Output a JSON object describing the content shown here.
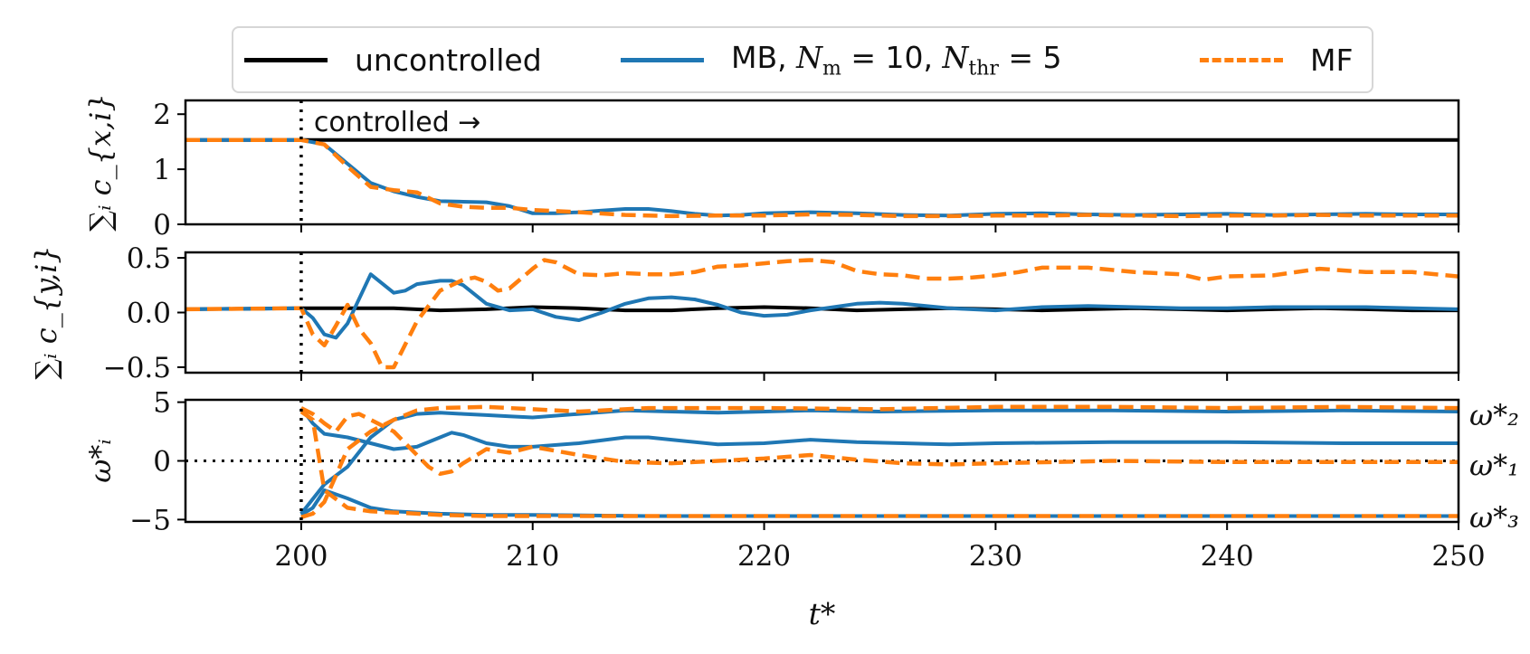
{
  "chart_data": [
    {
      "type": "line",
      "panel": "top",
      "ylabel": "∑ᵢ c_{x,i}",
      "ylim": [
        0,
        2.25
      ],
      "yticks": [
        0,
        1,
        2
      ],
      "xlim": [
        195,
        250
      ],
      "annotation": "controlled →",
      "series": [
        {
          "name": "uncontrolled",
          "color": "#000000",
          "dash": "solid",
          "x": [
            195,
            200,
            210,
            220,
            230,
            240,
            250
          ],
          "y": [
            1.53,
            1.53,
            1.53,
            1.53,
            1.53,
            1.53,
            1.53
          ]
        },
        {
          "name": "MB",
          "color": "#1f77b4",
          "dash": "solid",
          "x": [
            195,
            200,
            201,
            202,
            203,
            204,
            205,
            206,
            207,
            208,
            209,
            210,
            211,
            212,
            213,
            214,
            215,
            216,
            217,
            218,
            219,
            220,
            222,
            224,
            226,
            228,
            230,
            232,
            234,
            236,
            238,
            240,
            242,
            244,
            246,
            248,
            250
          ],
          "y": [
            1.53,
            1.53,
            1.45,
            1.1,
            0.75,
            0.6,
            0.5,
            0.42,
            0.41,
            0.4,
            0.33,
            0.2,
            0.2,
            0.22,
            0.25,
            0.28,
            0.28,
            0.24,
            0.19,
            0.16,
            0.17,
            0.2,
            0.22,
            0.2,
            0.17,
            0.16,
            0.19,
            0.2,
            0.18,
            0.17,
            0.18,
            0.19,
            0.17,
            0.18,
            0.19,
            0.18,
            0.18
          ]
        },
        {
          "name": "MF",
          "color": "#ff7f0e",
          "dash": "dashed",
          "x": [
            195,
            200,
            201,
            202,
            203,
            204,
            205,
            206,
            207,
            208,
            209,
            210,
            212,
            214,
            216,
            218,
            220,
            222,
            224,
            226,
            228,
            230,
            232,
            234,
            236,
            238,
            240,
            242,
            244,
            246,
            248,
            250
          ],
          "y": [
            1.53,
            1.53,
            1.45,
            1.05,
            0.68,
            0.62,
            0.58,
            0.38,
            0.32,
            0.3,
            0.3,
            0.26,
            0.22,
            0.17,
            0.15,
            0.16,
            0.16,
            0.18,
            0.17,
            0.15,
            0.15,
            0.16,
            0.16,
            0.17,
            0.16,
            0.15,
            0.16,
            0.16,
            0.17,
            0.16,
            0.16,
            0.16
          ]
        }
      ]
    },
    {
      "type": "line",
      "panel": "middle",
      "ylabel": "∑ᵢ c_{y,i}",
      "ylim": [
        -0.55,
        0.55
      ],
      "yticks": [
        -0.5,
        0.0,
        0.5
      ],
      "xlim": [
        195,
        250
      ],
      "series": [
        {
          "name": "uncontrolled",
          "color": "#000000",
          "dash": "solid",
          "x": [
            195,
            200,
            202,
            204,
            206,
            208,
            210,
            212,
            214,
            216,
            218,
            220,
            222,
            224,
            226,
            228,
            230,
            232,
            234,
            236,
            238,
            240,
            242,
            244,
            246,
            248,
            250
          ],
          "y": [
            0.03,
            0.04,
            0.04,
            0.04,
            0.02,
            0.03,
            0.05,
            0.04,
            0.02,
            0.02,
            0.04,
            0.05,
            0.04,
            0.02,
            0.03,
            0.04,
            0.03,
            0.02,
            0.03,
            0.04,
            0.03,
            0.02,
            0.03,
            0.04,
            0.03,
            0.02,
            0.02
          ]
        },
        {
          "name": "MB",
          "color": "#1f77b4",
          "dash": "solid",
          "x": [
            195,
            200,
            200.5,
            201,
            201.5,
            202,
            203,
            204,
            204.5,
            205,
            206,
            206.5,
            207,
            208,
            209,
            210,
            211,
            212,
            213,
            214,
            215,
            216,
            217,
            218,
            219,
            220,
            221,
            222,
            223,
            224,
            225,
            226,
            228,
            230,
            232,
            234,
            236,
            238,
            240,
            242,
            244,
            246,
            248,
            250
          ],
          "y": [
            0.03,
            0.04,
            -0.05,
            -0.2,
            -0.23,
            -0.1,
            0.35,
            0.18,
            0.2,
            0.26,
            0.29,
            0.29,
            0.25,
            0.08,
            0.02,
            0.03,
            -0.04,
            -0.07,
            0.0,
            0.08,
            0.13,
            0.14,
            0.12,
            0.07,
            0.0,
            -0.03,
            -0.02,
            0.02,
            0.05,
            0.08,
            0.09,
            0.08,
            0.04,
            0.02,
            0.05,
            0.06,
            0.05,
            0.04,
            0.04,
            0.05,
            0.05,
            0.05,
            0.04,
            0.03
          ]
        },
        {
          "name": "MF",
          "color": "#ff7f0e",
          "dash": "dashed",
          "x": [
            195,
            200,
            200.5,
            201,
            201.5,
            202,
            202.5,
            203,
            203.5,
            204,
            205,
            206,
            207,
            207.5,
            208,
            208.5,
            209,
            210,
            210.5,
            211,
            212,
            213,
            214,
            215,
            216,
            217,
            218,
            219,
            220,
            221,
            222,
            223,
            224,
            225,
            226,
            227,
            228,
            229,
            230,
            231,
            232,
            234,
            236,
            238,
            239,
            240,
            242,
            244,
            246,
            248,
            250
          ],
          "y": [
            0.03,
            0.04,
            -0.2,
            -0.3,
            -0.12,
            0.07,
            -0.15,
            -0.28,
            -0.5,
            -0.5,
            -0.08,
            0.2,
            0.3,
            0.32,
            0.28,
            0.2,
            0.22,
            0.4,
            0.48,
            0.46,
            0.35,
            0.34,
            0.36,
            0.35,
            0.35,
            0.37,
            0.42,
            0.43,
            0.45,
            0.47,
            0.48,
            0.46,
            0.38,
            0.35,
            0.34,
            0.31,
            0.31,
            0.32,
            0.34,
            0.37,
            0.41,
            0.41,
            0.37,
            0.35,
            0.3,
            0.33,
            0.34,
            0.4,
            0.37,
            0.37,
            0.33
          ]
        }
      ]
    },
    {
      "type": "line",
      "panel": "bottom",
      "ylabel": "ω*ᵢ",
      "ylim": [
        -5.2,
        5.2
      ],
      "yticks": [
        -5,
        0,
        5
      ],
      "xlim": [
        195,
        250
      ],
      "xlabel": "t*",
      "xticks": [
        200,
        210,
        220,
        230,
        240,
        250
      ],
      "zero_line": true,
      "right_labels": [
        "ω*₂",
        "ω*₁",
        "ω*₃"
      ],
      "series": [
        {
          "name": "MB ω2",
          "color": "#1f77b4",
          "dash": "solid",
          "x": [
            200,
            201,
            202,
            203,
            204,
            205,
            206,
            207,
            208,
            209,
            210,
            212,
            214,
            216,
            218,
            220,
            222,
            225,
            230,
            235,
            240,
            245,
            250
          ],
          "y": [
            -4.5,
            -2.0,
            -0.5,
            2.0,
            3.5,
            4.0,
            4.1,
            4.0,
            3.9,
            3.8,
            3.7,
            4.0,
            4.3,
            4.2,
            4.1,
            4.2,
            4.3,
            4.2,
            4.3,
            4.3,
            4.2,
            4.3,
            4.2
          ]
        },
        {
          "name": "MB ω1",
          "color": "#1f77b4",
          "dash": "solid",
          "x": [
            200,
            200.5,
            201,
            202,
            203,
            204,
            205,
            206,
            206.5,
            207,
            208,
            209,
            210,
            212,
            214,
            215,
            216,
            218,
            220,
            222,
            224,
            226,
            228,
            230,
            235,
            240,
            245,
            250
          ],
          "y": [
            4.5,
            3.2,
            2.3,
            2.0,
            1.5,
            1.0,
            1.2,
            2.0,
            2.4,
            2.2,
            1.5,
            1.2,
            1.2,
            1.5,
            2.0,
            2.0,
            1.8,
            1.4,
            1.5,
            1.8,
            1.6,
            1.5,
            1.4,
            1.5,
            1.6,
            1.6,
            1.5,
            1.5
          ]
        },
        {
          "name": "MB ω3",
          "color": "#1f77b4",
          "dash": "solid",
          "x": [
            200,
            200.5,
            201,
            202,
            203,
            204,
            205,
            206,
            208,
            210,
            215,
            220,
            225,
            230,
            235,
            240,
            245,
            250
          ],
          "y": [
            -4.6,
            -4.0,
            -2.5,
            -3.2,
            -4.0,
            -4.3,
            -4.4,
            -4.5,
            -4.6,
            -4.6,
            -4.7,
            -4.7,
            -4.7,
            -4.7,
            -4.7,
            -4.7,
            -4.7,
            -4.7
          ]
        },
        {
          "name": "MF ω2",
          "color": "#ff7f0e",
          "dash": "dashed",
          "x": [
            200,
            200.5,
            201,
            202,
            203,
            204,
            205,
            206,
            208,
            210,
            212,
            215,
            220,
            225,
            230,
            235,
            240,
            245,
            250
          ],
          "y": [
            -4.8,
            -4.5,
            -3.5,
            1.0,
            2.5,
            3.5,
            4.3,
            4.5,
            4.6,
            4.4,
            4.2,
            4.5,
            4.5,
            4.4,
            4.6,
            4.6,
            4.5,
            4.6,
            4.5
          ]
        },
        {
          "name": "MF ω1",
          "color": "#ff7f0e",
          "dash": "dashed",
          "x": [
            200,
            200.5,
            201,
            201.5,
            202,
            202.5,
            203,
            204,
            205,
            205.5,
            206,
            206.5,
            207,
            208,
            209,
            210,
            212,
            214,
            216,
            218,
            220,
            222,
            224,
            226,
            228,
            230,
            235,
            240,
            245,
            250
          ],
          "y": [
            4.5,
            4.0,
            3.2,
            2.5,
            3.8,
            4.0,
            3.5,
            2.5,
            0.5,
            -0.5,
            -1.1,
            -0.9,
            -0.2,
            1.0,
            0.7,
            1.2,
            0.5,
            -0.1,
            -0.2,
            0.0,
            0.2,
            0.5,
            0.1,
            -0.2,
            -0.3,
            -0.2,
            0.0,
            -0.1,
            -0.1,
            -0.1
          ]
        },
        {
          "name": "MF ω3",
          "color": "#ff7f0e",
          "dash": "dashed",
          "x": [
            200,
            200.5,
            201,
            202,
            203,
            204,
            205,
            206,
            208,
            210,
            215,
            220,
            225,
            230,
            235,
            240,
            245,
            250
          ],
          "y": [
            4.2,
            3.5,
            -2.5,
            -4.0,
            -4.3,
            -4.4,
            -4.5,
            -4.6,
            -4.7,
            -4.7,
            -4.7,
            -4.7,
            -4.7,
            -4.7,
            -4.7,
            -4.7,
            -4.7,
            -4.7
          ]
        }
      ]
    }
  ],
  "legend": {
    "items": [
      {
        "name": "uncontrolled",
        "color": "#000000",
        "dash": "solid"
      },
      {
        "name": "MB",
        "color": "#1f77b4",
        "dash": "solid"
      },
      {
        "name": "MF",
        "color": "#ff7f0e",
        "dash": "dashed"
      }
    ],
    "mb_prefix": "MB, ",
    "mb_nm_sub": "m",
    "mb_nm_eq": " = 10, ",
    "mb_nthr_sub": "thr",
    "mb_nthr_eq": " = 5",
    "n_symbol": "N"
  },
  "control_start": 200
}
